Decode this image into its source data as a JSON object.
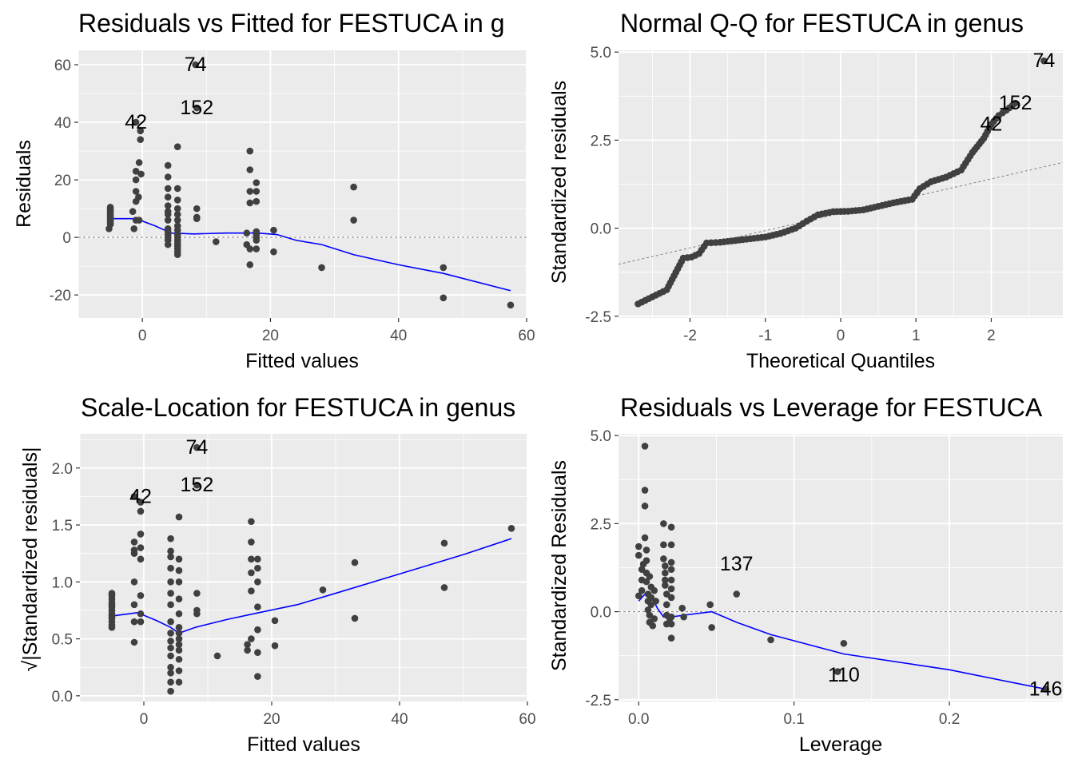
{
  "theme": {
    "panel_bg": "#ebebeb",
    "grid_major": "#ffffff",
    "point": "#404040",
    "smooth_line": "#0000ff",
    "ref_line": "#808080",
    "text": "#000000",
    "tick_text": "#4d4d4d"
  },
  "chart_data": [
    {
      "type": "scatter",
      "title": "Residuals vs Fitted for FESTUCA in g",
      "xlabel": "Fitted values",
      "ylabel": "Residuals",
      "xlim": [
        -10,
        60
      ],
      "ylim": [
        -28,
        65
      ],
      "xticks": [
        0,
        20,
        40,
        60
      ],
      "yticks": [
        -20,
        0,
        20,
        40,
        60
      ],
      "reference_line": {
        "type": "hline",
        "y": 0
      },
      "points": [
        [
          -5,
          10
        ],
        [
          -5,
          9
        ],
        [
          -5,
          8.5
        ],
        [
          -5,
          8
        ],
        [
          -5,
          7.5
        ],
        [
          -5,
          7
        ],
        [
          -5,
          6.5
        ],
        [
          -5,
          6
        ],
        [
          -5,
          5.5
        ],
        [
          -5,
          5
        ],
        [
          -5,
          4.5
        ],
        [
          -5,
          10.5
        ],
        [
          -5,
          9.5
        ],
        [
          -5.2,
          3
        ],
        [
          -1,
          40
        ],
        [
          -1,
          23
        ],
        [
          -1,
          20
        ],
        [
          -1,
          16
        ],
        [
          -1,
          12.5
        ],
        [
          -1,
          6
        ],
        [
          -1.5,
          9
        ],
        [
          -0.5,
          6
        ],
        [
          -1.3,
          3
        ],
        [
          -0.3,
          37
        ],
        [
          -0.3,
          34
        ],
        [
          -0.5,
          26
        ],
        [
          -0.2,
          22
        ],
        [
          -0.6,
          14
        ],
        [
          4,
          25
        ],
        [
          4,
          21
        ],
        [
          4,
          17
        ],
        [
          4,
          14
        ],
        [
          4,
          11
        ],
        [
          4,
          9
        ],
        [
          4,
          8
        ],
        [
          4,
          6
        ],
        [
          4,
          3
        ],
        [
          4,
          2
        ],
        [
          4,
          1
        ],
        [
          4,
          0
        ],
        [
          4,
          -1
        ],
        [
          4,
          -2.5
        ],
        [
          5.5,
          31.5
        ],
        [
          5.5,
          17
        ],
        [
          5.5,
          13
        ],
        [
          5.5,
          10
        ],
        [
          5.5,
          8
        ],
        [
          5.5,
          6
        ],
        [
          5.5,
          4
        ],
        [
          5.5,
          2.5
        ],
        [
          5.5,
          1
        ],
        [
          5.5,
          0
        ],
        [
          5.5,
          -1
        ],
        [
          5.5,
          -2
        ],
        [
          5.5,
          -3
        ],
        [
          5.5,
          -4
        ],
        [
          5.5,
          -5
        ],
        [
          5.5,
          -6
        ],
        [
          8.3,
          60
        ],
        [
          8.5,
          45
        ],
        [
          8.5,
          10
        ],
        [
          8.5,
          7
        ],
        [
          8.5,
          6.5
        ],
        [
          11.5,
          -1.5
        ],
        [
          16.3,
          1.5
        ],
        [
          16.3,
          -2.5
        ],
        [
          16.8,
          30
        ],
        [
          16.8,
          23.5
        ],
        [
          16.8,
          16
        ],
        [
          16.8,
          12
        ],
        [
          16.8,
          -4
        ],
        [
          16.8,
          -9.5
        ],
        [
          17.8,
          19
        ],
        [
          17.8,
          16
        ],
        [
          17.8,
          12.5
        ],
        [
          17.8,
          2
        ],
        [
          17.8,
          1
        ],
        [
          17.8,
          0
        ],
        [
          17.8,
          -1
        ],
        [
          17.8,
          -4
        ],
        [
          20.5,
          2.5
        ],
        [
          20.5,
          -5
        ],
        [
          28,
          -10.5
        ],
        [
          33,
          17.5
        ],
        [
          33,
          6
        ],
        [
          47,
          -10.5
        ],
        [
          47,
          -21
        ],
        [
          57.5,
          -23.5
        ]
      ],
      "smooth": [
        [
          -5,
          6.5
        ],
        [
          -1,
          6.5
        ],
        [
          2,
          4
        ],
        [
          4.5,
          1.5
        ],
        [
          8,
          1.2
        ],
        [
          13,
          1.5
        ],
        [
          18,
          1.5
        ],
        [
          21,
          1
        ],
        [
          24,
          -1
        ],
        [
          28,
          -2.5
        ],
        [
          33,
          -6
        ],
        [
          40,
          -9.5
        ],
        [
          47,
          -12.5
        ],
        [
          57.5,
          -18.5
        ]
      ],
      "labels": [
        {
          "text": "74",
          "x": 8.3,
          "y": 60
        },
        {
          "text": "42",
          "x": -1,
          "y": 40
        },
        {
          "text": "152",
          "x": 8.5,
          "y": 45
        }
      ]
    },
    {
      "type": "scatter",
      "title": "Normal Q-Q for FESTUCA in genus",
      "xlabel": "Theoretical Quantiles",
      "ylabel": "Standardized residuals",
      "xlim": [
        -2.95,
        2.95
      ],
      "ylim": [
        -2.55,
        5.05
      ],
      "xticks": [
        -2,
        -1,
        0,
        1,
        2
      ],
      "yticks": [
        -2.5,
        0.0,
        2.5,
        5.0
      ],
      "reference_line": {
        "type": "abline",
        "intercept": 0.42,
        "slope": 0.49
      },
      "qq_curve": [
        [
          -2.69,
          -2.15
        ],
        [
          -2.31,
          -1.75
        ],
        [
          -2.09,
          -0.85
        ],
        [
          -1.98,
          -0.82
        ],
        [
          -1.88,
          -0.72
        ],
        [
          -1.78,
          -0.42
        ],
        [
          -1.6,
          -0.4
        ],
        [
          -1.4,
          -0.35
        ],
        [
          -1.2,
          -0.3
        ],
        [
          -1.0,
          -0.25
        ],
        [
          -0.8,
          -0.15
        ],
        [
          -0.6,
          0.0
        ],
        [
          -0.45,
          0.2
        ],
        [
          -0.3,
          0.38
        ],
        [
          -0.1,
          0.47
        ],
        [
          0.1,
          0.48
        ],
        [
          0.3,
          0.52
        ],
        [
          0.5,
          0.62
        ],
        [
          0.7,
          0.72
        ],
        [
          0.95,
          0.82
        ],
        [
          1.05,
          1.12
        ],
        [
          1.2,
          1.32
        ],
        [
          1.4,
          1.45
        ],
        [
          1.6,
          1.65
        ],
        [
          1.75,
          2.15
        ],
        [
          1.9,
          2.55
        ],
        [
          2.0,
          2.95
        ],
        [
          2.1,
          3.2
        ],
        [
          2.2,
          3.35
        ],
        [
          2.32,
          3.55
        ]
      ],
      "extra_points": [
        [
          2.7,
          4.75
        ]
      ],
      "labels": [
        {
          "text": "74",
          "x": 2.7,
          "y": 4.75
        },
        {
          "text": "152",
          "x": 2.32,
          "y": 3.55
        },
        {
          "text": "42",
          "x": 2.0,
          "y": 2.95
        }
      ]
    },
    {
      "type": "scatter",
      "title": "Scale-Location for FESTUCA in genus",
      "xlabel": "Fitted values",
      "ylabel": "√|Standardized residuals|",
      "xlim": [
        -10,
        60
      ],
      "ylim": [
        -0.05,
        2.3
      ],
      "xticks": [
        0,
        20,
        40,
        60
      ],
      "yticks": [
        0.0,
        0.5,
        1.0,
        1.5,
        2.0
      ],
      "points": [
        [
          -5,
          0.9
        ],
        [
          -5,
          0.85
        ],
        [
          -5,
          0.8
        ],
        [
          -5,
          0.78
        ],
        [
          -5,
          0.75
        ],
        [
          -5,
          0.72
        ],
        [
          -5,
          0.7
        ],
        [
          -5,
          0.68
        ],
        [
          -5,
          0.65
        ],
        [
          -5,
          0.62
        ],
        [
          -5,
          0.6
        ],
        [
          -5,
          0.88
        ],
        [
          -5,
          0.82
        ],
        [
          -1.5,
          1.75
        ],
        [
          -1.5,
          1.35
        ],
        [
          -1.5,
          1.28
        ],
        [
          -1.5,
          1.25
        ],
        [
          -1.5,
          1.0
        ],
        [
          -1.5,
          0.8
        ],
        [
          -1.5,
          0.65
        ],
        [
          -1.5,
          0.47
        ],
        [
          -0.5,
          1.7
        ],
        [
          -0.5,
          1.62
        ],
        [
          -0.5,
          1.42
        ],
        [
          -0.5,
          1.3
        ],
        [
          -0.5,
          1.2
        ],
        [
          -0.5,
          0.88
        ],
        [
          -0.5,
          0.72
        ],
        [
          -0.5,
          0.65
        ],
        [
          4.2,
          1.38
        ],
        [
          4.2,
          1.27
        ],
        [
          4.2,
          1.22
        ],
        [
          4.2,
          1.12
        ],
        [
          4.2,
          1.0
        ],
        [
          4.2,
          0.9
        ],
        [
          4.2,
          0.8
        ],
        [
          4.2,
          0.65
        ],
        [
          4.2,
          0.55
        ],
        [
          4.2,
          0.48
        ],
        [
          4.2,
          0.42
        ],
        [
          4.2,
          0.35
        ],
        [
          4.2,
          0.25
        ],
        [
          4.2,
          0.2
        ],
        [
          4.2,
          0.12
        ],
        [
          4.2,
          0.04
        ],
        [
          5.5,
          1.57
        ],
        [
          5.5,
          1.2
        ],
        [
          5.5,
          1.1
        ],
        [
          5.5,
          1.0
        ],
        [
          5.5,
          0.85
        ],
        [
          5.5,
          0.72
        ],
        [
          5.5,
          0.6
        ],
        [
          5.5,
          0.55
        ],
        [
          5.5,
          0.5
        ],
        [
          5.5,
          0.45
        ],
        [
          5.5,
          0.4
        ],
        [
          5.5,
          0.32
        ],
        [
          5.5,
          0.22
        ],
        [
          5.5,
          0.12
        ],
        [
          8.3,
          2.18
        ],
        [
          8.3,
          1.85
        ],
        [
          8.3,
          0.9
        ],
        [
          8.3,
          0.75
        ],
        [
          8.3,
          0.72
        ],
        [
          11.5,
          0.35
        ],
        [
          16.2,
          0.45
        ],
        [
          16.2,
          0.4
        ],
        [
          16.8,
          1.53
        ],
        [
          16.8,
          1.35
        ],
        [
          16.8,
          1.2
        ],
        [
          16.8,
          1.08
        ],
        [
          16.8,
          0.92
        ],
        [
          16.8,
          0.5
        ],
        [
          17.8,
          1.2
        ],
        [
          17.8,
          1.12
        ],
        [
          17.8,
          1.0
        ],
        [
          17.8,
          0.78
        ],
        [
          17.8,
          0.58
        ],
        [
          17.8,
          0.38
        ],
        [
          17.8,
          0.17
        ],
        [
          20.5,
          0.66
        ],
        [
          20.5,
          0.44
        ],
        [
          28,
          0.93
        ],
        [
          33,
          1.17
        ],
        [
          33,
          0.68
        ],
        [
          47,
          1.34
        ],
        [
          47,
          0.95
        ],
        [
          57.5,
          1.47
        ]
      ],
      "smooth": [
        [
          -5,
          0.7
        ],
        [
          -1,
          0.73
        ],
        [
          2,
          0.66
        ],
        [
          4.2,
          0.6
        ],
        [
          5.5,
          0.55
        ],
        [
          8,
          0.6
        ],
        [
          13,
          0.67
        ],
        [
          18,
          0.73
        ],
        [
          24,
          0.8
        ],
        [
          30,
          0.9
        ],
        [
          40,
          1.07
        ],
        [
          50,
          1.24
        ],
        [
          57.5,
          1.38
        ]
      ],
      "labels": [
        {
          "text": "74",
          "x": 8.3,
          "y": 2.18
        },
        {
          "text": "42",
          "x": -0.5,
          "y": 1.75
        },
        {
          "text": "152",
          "x": 8.3,
          "y": 1.85
        }
      ]
    },
    {
      "type": "scatter",
      "title": "Residuals vs Leverage for FESTUCA",
      "xlabel": "Leverage",
      "ylabel": "Standardized Residuals",
      "xlim": [
        -0.013,
        0.273
      ],
      "ylim": [
        -2.55,
        5.05
      ],
      "xticks": [
        0.0,
        0.1,
        0.2
      ],
      "yticks": [
        -2.5,
        0.0,
        2.5,
        5.0
      ],
      "reference_line": {
        "type": "hline",
        "y": 0
      },
      "points": [
        [
          0.0,
          0.45
        ],
        [
          0.0,
          1.85
        ],
        [
          0.0,
          1.6
        ],
        [
          0.002,
          1.2
        ],
        [
          0.002,
          0.9
        ],
        [
          0.002,
          0.6
        ],
        [
          0.003,
          1.35
        ],
        [
          0.004,
          4.7
        ],
        [
          0.004,
          3.45
        ],
        [
          0.004,
          3.0
        ],
        [
          0.004,
          2.1
        ],
        [
          0.005,
          1.75
        ],
        [
          0.005,
          1.45
        ],
        [
          0.005,
          1.1
        ],
        [
          0.005,
          0.85
        ],
        [
          0.006,
          0.5
        ],
        [
          0.006,
          0.3
        ],
        [
          0.006,
          0.05
        ],
        [
          0.007,
          -0.1
        ],
        [
          0.007,
          -0.3
        ],
        [
          0.007,
          1.0
        ],
        [
          0.008,
          0.7
        ],
        [
          0.008,
          0.4
        ],
        [
          0.008,
          0.2
        ],
        [
          0.009,
          -0.4
        ],
        [
          0.01,
          -0.2
        ],
        [
          0.01,
          0.6
        ],
        [
          0.011,
          0.3
        ],
        [
          0.016,
          2.5
        ],
        [
          0.016,
          1.9
        ],
        [
          0.016,
          1.5
        ],
        [
          0.017,
          1.3
        ],
        [
          0.017,
          1.1
        ],
        [
          0.017,
          0.9
        ],
        [
          0.017,
          0.75
        ],
        [
          0.018,
          0.5
        ],
        [
          0.018,
          0.2
        ],
        [
          0.018,
          -0.1
        ],
        [
          0.018,
          -0.35
        ],
        [
          0.02,
          -0.2
        ],
        [
          0.021,
          2.4
        ],
        [
          0.021,
          1.9
        ],
        [
          0.021,
          1.4
        ],
        [
          0.021,
          1.2
        ],
        [
          0.021,
          0.9
        ],
        [
          0.021,
          0.65
        ],
        [
          0.021,
          0.4
        ],
        [
          0.021,
          -0.15
        ],
        [
          0.021,
          -0.35
        ],
        [
          0.021,
          -0.75
        ],
        [
          0.028,
          0.1
        ],
        [
          0.029,
          -0.15
        ],
        [
          0.046,
          0.2
        ],
        [
          0.047,
          -0.45
        ],
        [
          0.063,
          0.5
        ],
        [
          0.085,
          -0.8
        ],
        [
          0.132,
          -0.9
        ],
        [
          0.128,
          -1.7
        ],
        [
          0.262,
          -2.2
        ]
      ],
      "smooth": [
        [
          0.0,
          0.3
        ],
        [
          0.004,
          0.5
        ],
        [
          0.008,
          0.45
        ],
        [
          0.012,
          0.1
        ],
        [
          0.016,
          -0.15
        ],
        [
          0.021,
          -0.15
        ],
        [
          0.029,
          -0.1
        ],
        [
          0.047,
          0.0
        ],
        [
          0.063,
          -0.3
        ],
        [
          0.085,
          -0.65
        ],
        [
          0.132,
          -1.2
        ],
        [
          0.2,
          -1.65
        ],
        [
          0.262,
          -2.2
        ]
      ],
      "labels": [
        {
          "text": "137",
          "x": 0.063,
          "y": 1.35
        },
        {
          "text": "110",
          "x": 0.132,
          "y": -1.8
        },
        {
          "text": "146",
          "x": 0.262,
          "y": -2.2
        }
      ]
    }
  ]
}
